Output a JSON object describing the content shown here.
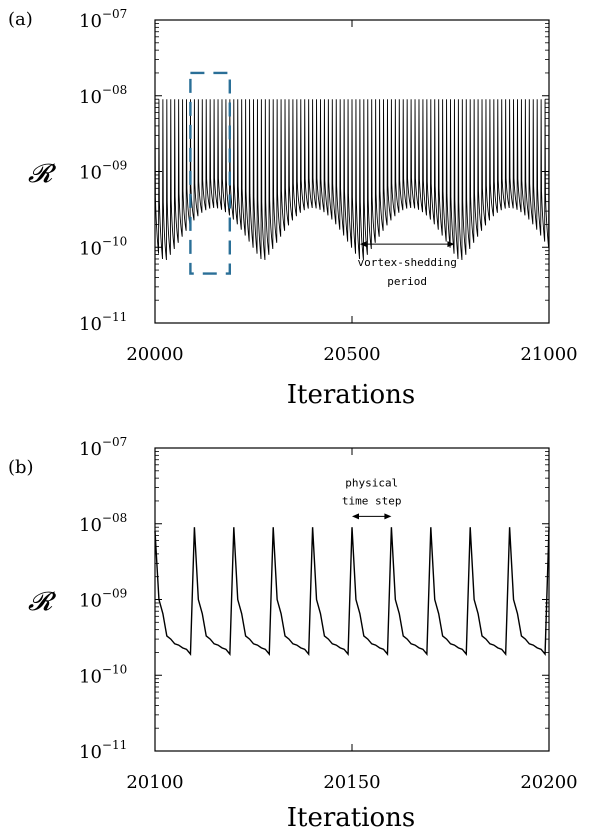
{
  "chart_data": [
    {
      "panel_label": "(a)",
      "type": "line",
      "yscale": "log",
      "ylabel": "𝓡",
      "xlabel": "Iterations",
      "xlim": [
        20000,
        21000
      ],
      "ylim": [
        1e-11,
        1e-07
      ],
      "x_ticks": [
        "20000",
        "20500",
        "21000"
      ],
      "y_ticks": [
        {
          "base": "10",
          "exp": "−07"
        },
        {
          "base": "10",
          "exp": "−08"
        },
        {
          "base": "10",
          "exp": "−09"
        },
        {
          "base": "10",
          "exp": "−10"
        },
        {
          "base": "10",
          "exp": "−11"
        }
      ],
      "series": [
        {
          "description": "residual oscillation: peaks every 10 iterations near 9e-09, troughs modulated with vortex-shedding period",
          "peak_value": 9e-09,
          "step_period": 10,
          "x_start": 20000,
          "x_end": 21000,
          "trough_max": 3.3e-10,
          "trough_min": 6.5e-11,
          "shedding_period": 250,
          "first_trough_peak_x": 20150
        }
      ],
      "highlight_box": {
        "x": [
          20100,
          20200
        ],
        "y": [
          4.5e-11,
          2e-08
        ],
        "color": "#2a6f97"
      },
      "annotations": [
        {
          "text_lines": [
            "vortex-shedding",
            "period"
          ],
          "arrow_x": [
            20520,
            20760
          ],
          "arrow_y": 1.1e-10
        }
      ]
    },
    {
      "panel_label": "(b)",
      "type": "line",
      "yscale": "log",
      "ylabel": "𝓡",
      "xlabel": "Iterations",
      "xlim": [
        20100,
        20200
      ],
      "ylim": [
        1e-11,
        1e-07
      ],
      "x_ticks": [
        "20100",
        "20150",
        "20200"
      ],
      "y_ticks": [
        {
          "base": "10",
          "exp": "−07"
        },
        {
          "base": "10",
          "exp": "−08"
        },
        {
          "base": "10",
          "exp": "−09"
        },
        {
          "base": "10",
          "exp": "−10"
        },
        {
          "base": "10",
          "exp": "−11"
        }
      ],
      "series": [
        {
          "description": "residual within each physical time step: spike to ~9e-09 then decay",
          "x": [
            20100,
            20101,
            20102,
            20103,
            20104,
            20105,
            20106,
            20107,
            20108,
            20109,
            20110
          ],
          "y": [
            8e-09,
            1e-09,
            6.2e-10,
            3e-10,
            3e-10,
            2.5e-10,
            2.4e-10,
            2.2e-10,
            2.1e-10,
            1.8e-10,
            9e-09
          ],
          "cycle_values": [
            9e-09,
            1e-09,
            6.5e-10,
            3.3e-10,
            3e-10,
            2.6e-10,
            2.5e-10,
            2.3e-10,
            2.2e-10,
            1.9e-10
          ],
          "period": 10
        }
      ],
      "annotations": [
        {
          "text_lines": [
            "physical",
            "time step"
          ],
          "arrow_x": [
            20150,
            20160
          ],
          "arrow_y": 1.25e-08
        }
      ]
    }
  ]
}
